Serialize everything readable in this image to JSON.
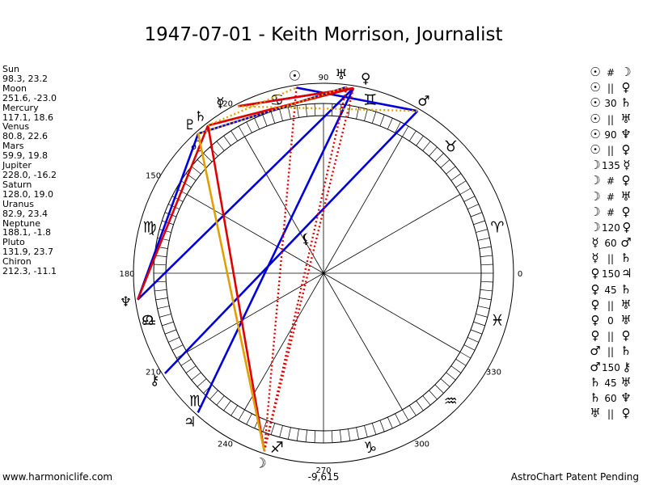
{
  "title": "1947-07-01 - Keith Morrison, Journalist",
  "planets": [
    {
      "name": "Sun",
      "glyph": "☉",
      "value": "98.3, 23.2",
      "lon": 98.3
    },
    {
      "name": "Moon",
      "glyph": "☽",
      "value": "251.6, -23.0",
      "lon": 251.6
    },
    {
      "name": "Mercury",
      "glyph": "☿",
      "value": "117.1, 18.6",
      "lon": 117.1
    },
    {
      "name": "Venus",
      "glyph": "♀",
      "value": "80.8, 22.6",
      "lon": 80.8
    },
    {
      "name": "Mars",
      "glyph": "♂",
      "value": "59.9, 19.8",
      "lon": 59.9
    },
    {
      "name": "Jupiter",
      "glyph": "♃",
      "value": "228.0, -16.2",
      "lon": 228.0
    },
    {
      "name": "Saturn",
      "glyph": "♄",
      "value": "128.0, 19.0",
      "lon": 128.0
    },
    {
      "name": "Uranus",
      "glyph": "♅",
      "value": "82.9, 23.4",
      "lon": 82.9
    },
    {
      "name": "Neptune",
      "glyph": "♆",
      "value": "188.1, -1.8",
      "lon": 188.1
    },
    {
      "name": "Pluto",
      "glyph": "♇",
      "value": "131.9, 23.7",
      "lon": 131.9
    },
    {
      "name": "Chiron",
      "glyph": "⚷",
      "value": "212.3, -11.1",
      "lon": 212.3
    }
  ],
  "extra_points": [
    {
      "name": "North Node",
      "glyph": "☊",
      "lon": 195
    },
    {
      "name": "Lilith",
      "glyph": "⚸",
      "lon": 117
    }
  ],
  "aspects_list": [
    {
      "p1": "☉",
      "aspect": "#",
      "p2": "☽"
    },
    {
      "p1": "☉",
      "aspect": "||",
      "p2": "♀"
    },
    {
      "p1": "☉",
      "aspect": "30",
      "p2": "♄"
    },
    {
      "p1": "☉",
      "aspect": "||",
      "p2": "♅"
    },
    {
      "p1": "☉",
      "aspect": "90",
      "p2": "♆"
    },
    {
      "p1": "☉",
      "aspect": "||",
      "p2": "♀"
    },
    {
      "p1": "☽",
      "aspect": "135",
      "p2": "☿"
    },
    {
      "p1": "☽",
      "aspect": "#",
      "p2": "♀"
    },
    {
      "p1": "☽",
      "aspect": "#",
      "p2": "♅"
    },
    {
      "p1": "☽",
      "aspect": "#",
      "p2": "♀"
    },
    {
      "p1": "☽",
      "aspect": "120",
      "p2": "♀"
    },
    {
      "p1": "☿",
      "aspect": "60",
      "p2": "♂"
    },
    {
      "p1": "☿",
      "aspect": "||",
      "p2": "♄"
    },
    {
      "p1": "♀",
      "aspect": "150",
      "p2": "♃"
    },
    {
      "p1": "♀",
      "aspect": "45",
      "p2": "♄"
    },
    {
      "p1": "♀",
      "aspect": "||",
      "p2": "♅"
    },
    {
      "p1": "♀",
      "aspect": "0",
      "p2": "♅"
    },
    {
      "p1": "♀",
      "aspect": "||",
      "p2": "♀"
    },
    {
      "p1": "♂",
      "aspect": "||",
      "p2": "♄"
    },
    {
      "p1": "♂",
      "aspect": "150",
      "p2": "⚷"
    },
    {
      "p1": "♄",
      "aspect": "45",
      "p2": "♅"
    },
    {
      "p1": "♄",
      "aspect": "60",
      "p2": "♆"
    },
    {
      "p1": "♅",
      "aspect": "||",
      "p2": "♀"
    }
  ],
  "wheel": {
    "degree_labels": [
      {
        "deg": 0,
        "label": "0"
      },
      {
        "deg": 90,
        "label": "90"
      },
      {
        "deg": 120,
        "label": "120"
      },
      {
        "deg": 150,
        "label": "150"
      },
      {
        "deg": 180,
        "label": "180"
      },
      {
        "deg": 210,
        "label": "210"
      },
      {
        "deg": 240,
        "label": "240"
      },
      {
        "deg": 270,
        "label": "270"
      },
      {
        "deg": 300,
        "label": "300"
      },
      {
        "deg": 330,
        "label": "330"
      }
    ],
    "signs": [
      {
        "name": "Aries",
        "glyph": "♈"
      },
      {
        "name": "Taurus",
        "glyph": "♉"
      },
      {
        "name": "Gemini",
        "glyph": "♊"
      },
      {
        "name": "Cancer",
        "glyph": "♋"
      },
      {
        "name": "Leo",
        "glyph": "♌"
      },
      {
        "name": "Virgo",
        "glyph": "♍"
      },
      {
        "name": "Libra",
        "glyph": "♎"
      },
      {
        "name": "Scorpio",
        "glyph": "♏"
      },
      {
        "name": "Sagittarius",
        "glyph": "♐"
      },
      {
        "name": "Capricorn",
        "glyph": "♑"
      },
      {
        "name": "Aquarius",
        "glyph": "♒"
      },
      {
        "name": "Pisces",
        "glyph": "♓"
      }
    ]
  },
  "aspect_lines": [
    {
      "from": "Neptune",
      "to": "Venus",
      "color": "#0000dd",
      "style": "solid"
    },
    {
      "from": "Neptune",
      "to": "Pluto",
      "color": "#0000dd",
      "style": "solid"
    },
    {
      "from": "Chiron",
      "to": "Mars",
      "color": "#0000dd",
      "style": "solid"
    },
    {
      "from": "Jupiter",
      "to": "Venus",
      "color": "#0000dd",
      "style": "solid"
    },
    {
      "from": "Mercury",
      "to": "Venus",
      "color": "#0000dd",
      "style": "solid"
    },
    {
      "from": "Sun",
      "to": "Mars",
      "color": "#0000dd",
      "style": "solid"
    },
    {
      "from": "Pluto",
      "to": "Uranus",
      "color": "#0000dd",
      "style": "solid"
    },
    {
      "from": "Neptune",
      "to": "Saturn",
      "color": "#e00000",
      "style": "solid"
    },
    {
      "from": "Moon",
      "to": "Saturn",
      "color": "#e00000",
      "style": "solid"
    },
    {
      "from": "Saturn",
      "to": "Venus",
      "color": "#e00000",
      "style": "solid"
    },
    {
      "from": "Mercury",
      "to": "Venus",
      "color": "#e00000",
      "style": "solid"
    },
    {
      "from": "Moon",
      "to": "Sun",
      "color": "#e00000",
      "style": "dotted"
    },
    {
      "from": "Moon",
      "to": "Venus",
      "color": "#e00000",
      "style": "dotted"
    },
    {
      "from": "Moon",
      "to": "Uranus",
      "color": "#e00000",
      "style": "dotted"
    },
    {
      "from": "Moon",
      "to": "Pluto",
      "color": "#e0a000",
      "style": "solid"
    },
    {
      "from": "Mercury",
      "to": "Mars",
      "color": "#e0a000",
      "style": "dotted"
    },
    {
      "from": "Pluto",
      "to": "Uranus",
      "color": "#e0a000",
      "style": "dotted"
    },
    {
      "from": "Saturn",
      "to": "Sun",
      "color": "#e0a000",
      "style": "dotted"
    }
  ],
  "center_value": "-9,615",
  "footer_left": "www.harmoniclife.com",
  "footer_right": "AstroChart Patent Pending",
  "colors": {
    "blue": "#0000dd",
    "red": "#e00000",
    "orange": "#e0a000"
  }
}
